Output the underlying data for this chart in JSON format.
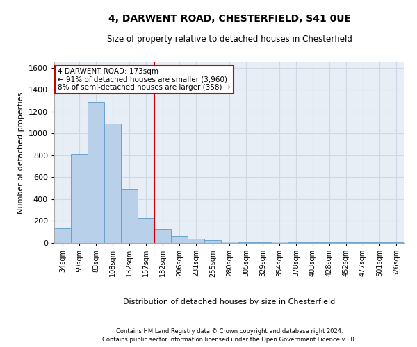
{
  "title1": "4, DARWENT ROAD, CHESTERFIELD, S41 0UE",
  "title2": "Size of property relative to detached houses in Chesterfield",
  "xlabel": "Distribution of detached houses by size in Chesterfield",
  "ylabel": "Number of detached properties",
  "bar_labels": [
    "34sqm",
    "59sqm",
    "83sqm",
    "108sqm",
    "132sqm",
    "157sqm",
    "182sqm",
    "206sqm",
    "231sqm",
    "255sqm",
    "280sqm",
    "305sqm",
    "329sqm",
    "354sqm",
    "378sqm",
    "403sqm",
    "428sqm",
    "452sqm",
    "477sqm",
    "501sqm",
    "526sqm"
  ],
  "bar_values": [
    135,
    815,
    1290,
    1090,
    490,
    230,
    130,
    65,
    35,
    25,
    15,
    5,
    5,
    15,
    5,
    5,
    5,
    5,
    5,
    5,
    5
  ],
  "bar_color": "#b8d0ea",
  "bar_edgecolor": "#6aa3cc",
  "ylim": [
    0,
    1650
  ],
  "yticks": [
    0,
    200,
    400,
    600,
    800,
    1000,
    1200,
    1400,
    1600
  ],
  "vline_x": 5.5,
  "vline_color": "#cc0000",
  "annotation_line1": "4 DARWENT ROAD: 173sqm",
  "annotation_line2": "← 91% of detached houses are smaller (3,960)",
  "annotation_line3": "8% of semi-detached houses are larger (358) →",
  "annotation_box_color": "#cc0000",
  "footer1": "Contains HM Land Registry data © Crown copyright and database right 2024.",
  "footer2": "Contains public sector information licensed under the Open Government Licence v3.0.",
  "bg_color": "#e8eef5",
  "grid_color": "#d0d8e8"
}
